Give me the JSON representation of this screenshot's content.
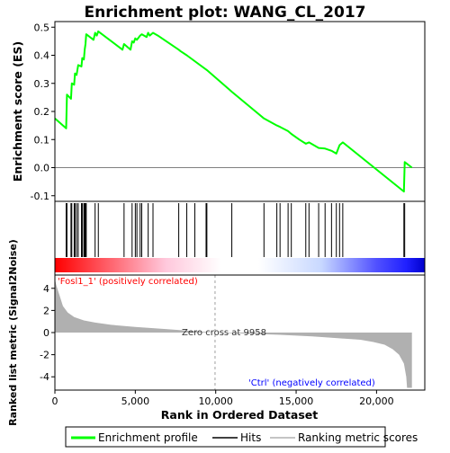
{
  "chart_data": {
    "type": "line",
    "title": "Enrichment plot: WANG_CL_2017",
    "colors": {
      "profile": "#00ff00",
      "hits": "#000000",
      "metric_fill": "#b0b0b0",
      "positive": "#ff0000",
      "negative": "#0000ff",
      "annotation_pos": "#ff0000",
      "annotation_neg": "#0000ff"
    },
    "es_panel": {
      "ylabel": "Enrichment score (ES)",
      "ylim": [
        -0.12,
        0.52
      ],
      "yticks": [
        -0.1,
        0.0,
        0.1,
        0.2,
        0.3,
        0.4,
        0.5
      ],
      "ytick_labels": [
        "-0.1",
        "0.0",
        "0.1",
        "0.2",
        "0.3",
        "0.4",
        "0.5"
      ],
      "profile": [
        [
          0,
          0.175
        ],
        [
          700,
          0.14
        ],
        [
          750,
          0.26
        ],
        [
          1000,
          0.245
        ],
        [
          1050,
          0.3
        ],
        [
          1200,
          0.295
        ],
        [
          1250,
          0.335
        ],
        [
          1350,
          0.33
        ],
        [
          1450,
          0.365
        ],
        [
          1650,
          0.36
        ],
        [
          1700,
          0.39
        ],
        [
          1800,
          0.385
        ],
        [
          1850,
          0.42
        ],
        [
          1900,
          0.44
        ],
        [
          1950,
          0.475
        ],
        [
          2400,
          0.455
        ],
        [
          2500,
          0.48
        ],
        [
          2600,
          0.47
        ],
        [
          2700,
          0.485
        ],
        [
          4200,
          0.42
        ],
        [
          4300,
          0.44
        ],
        [
          4700,
          0.42
        ],
        [
          4800,
          0.45
        ],
        [
          4900,
          0.445
        ],
        [
          5000,
          0.46
        ],
        [
          5100,
          0.455
        ],
        [
          5300,
          0.47
        ],
        [
          5400,
          0.475
        ],
        [
          5700,
          0.465
        ],
        [
          5800,
          0.48
        ],
        [
          5900,
          0.47
        ],
        [
          6100,
          0.48
        ],
        [
          6400,
          0.47
        ],
        [
          7700,
          0.42
        ],
        [
          7800,
          0.415
        ],
        [
          8200,
          0.4
        ],
        [
          9500,
          0.345
        ],
        [
          11000,
          0.27
        ],
        [
          13000,
          0.175
        ],
        [
          13800,
          0.15
        ],
        [
          14000,
          0.145
        ],
        [
          14500,
          0.13
        ],
        [
          14700,
          0.12
        ],
        [
          15200,
          0.1
        ],
        [
          15600,
          0.085
        ],
        [
          15800,
          0.09
        ],
        [
          16400,
          0.07
        ],
        [
          16800,
          0.068
        ],
        [
          17200,
          0.06
        ],
        [
          17500,
          0.05
        ],
        [
          17700,
          0.08
        ],
        [
          17900,
          0.09
        ],
        [
          21700,
          -0.085
        ],
        [
          21750,
          0.02
        ],
        [
          22200,
          0.0
        ]
      ]
    },
    "hits": [
      700,
      750,
      1000,
      1050,
      1200,
      1250,
      1350,
      1450,
      1650,
      1700,
      1800,
      1850,
      1900,
      1950,
      2500,
      2700,
      4300,
      4800,
      5000,
      5100,
      5300,
      5400,
      5800,
      6100,
      7700,
      8200,
      8700,
      9400,
      9450,
      11000,
      13000,
      13800,
      14000,
      14500,
      14700,
      15600,
      15800,
      16400,
      16800,
      17200,
      17500,
      17700,
      17900,
      21700,
      21750
    ],
    "heatmap_bar": {
      "stops": [
        [
          0.0,
          "#ff0000"
        ],
        [
          0.3,
          "#ffc8dc"
        ],
        [
          0.45,
          "#ffffff"
        ],
        [
          0.55,
          "#ffffff"
        ],
        [
          0.72,
          "#c8d8ff"
        ],
        [
          0.87,
          "#5050ff"
        ],
        [
          0.95,
          "#2020ff"
        ],
        [
          1.0,
          "#0000cc"
        ]
      ]
    },
    "metric_panel": {
      "xlabel": "Rank in Ordered Dataset",
      "ylabel": "Ranked list metric (Signal2Noise)",
      "xlim": [
        0,
        23000
      ],
      "ylim": [
        -5.2,
        5.2
      ],
      "xticks": [
        0,
        5000,
        10000,
        15000,
        20000
      ],
      "xtick_labels": [
        "0",
        "5,000",
        "10,000",
        "15,000",
        "20,000"
      ],
      "yticks": [
        -4,
        -2,
        0,
        2,
        4
      ],
      "ytick_labels": [
        "-4",
        "-2",
        "0",
        "2",
        "4"
      ],
      "curve": [
        [
          0,
          4.8
        ],
        [
          100,
          4.2
        ],
        [
          300,
          3.3
        ],
        [
          500,
          2.4
        ],
        [
          800,
          1.8
        ],
        [
          1200,
          1.4
        ],
        [
          1800,
          1.1
        ],
        [
          2500,
          0.9
        ],
        [
          3500,
          0.7
        ],
        [
          5000,
          0.5
        ],
        [
          7000,
          0.3
        ],
        [
          8500,
          0.15
        ],
        [
          9958,
          0.0
        ],
        [
          12000,
          -0.1
        ],
        [
          14000,
          -0.2
        ],
        [
          16000,
          -0.35
        ],
        [
          17000,
          -0.45
        ],
        [
          18000,
          -0.55
        ],
        [
          19000,
          -0.65
        ],
        [
          19800,
          -0.85
        ],
        [
          20500,
          -1.1
        ],
        [
          21000,
          -1.5
        ],
        [
          21400,
          -2.0
        ],
        [
          21700,
          -2.8
        ],
        [
          21850,
          -4.0
        ],
        [
          21900,
          -5.0
        ],
        [
          22200,
          -5.0
        ]
      ],
      "zero_cross_rank": 9958,
      "zero_cross_label": "Zero cross at 9958",
      "pos_label": "'Fosl1_1' (positively correlated)",
      "neg_label": "'Ctrl' (negatively correlated)"
    },
    "legend": {
      "placement": "bottom",
      "items": [
        {
          "key": "profile",
          "label": "Enrichment profile"
        },
        {
          "key": "hits",
          "label": "Hits"
        },
        {
          "key": "metric",
          "label": "Ranking metric scores"
        }
      ]
    }
  }
}
